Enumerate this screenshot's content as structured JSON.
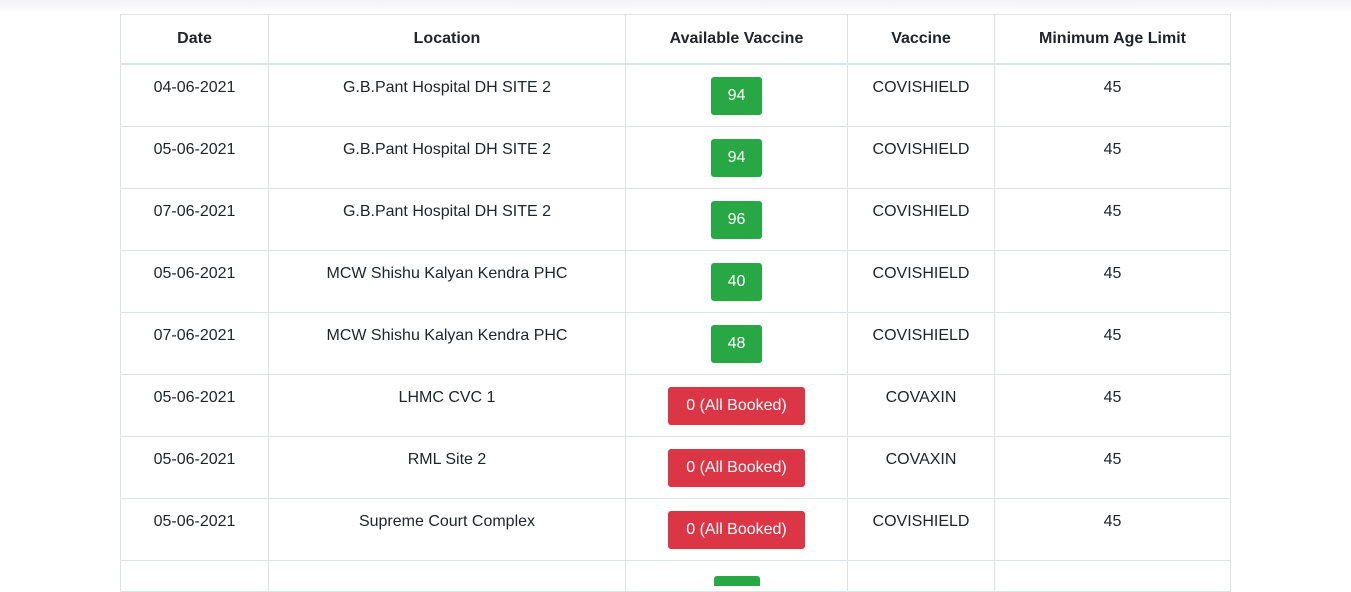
{
  "table": {
    "headers": [
      "Date",
      "Location",
      "Available Vaccine",
      "Vaccine",
      "Minimum Age Limit"
    ],
    "rows": [
      {
        "date": "04-06-2021",
        "location": "G.B.Pant Hospital DH SITE 2",
        "available": "94",
        "status": "ok",
        "vaccine": "COVISHIELD",
        "age": "45"
      },
      {
        "date": "05-06-2021",
        "location": "G.B.Pant Hospital DH SITE 2",
        "available": "94",
        "status": "ok",
        "vaccine": "COVISHIELD",
        "age": "45"
      },
      {
        "date": "07-06-2021",
        "location": "G.B.Pant Hospital DH SITE 2",
        "available": "96",
        "status": "ok",
        "vaccine": "COVISHIELD",
        "age": "45"
      },
      {
        "date": "05-06-2021",
        "location": "MCW Shishu Kalyan Kendra PHC",
        "available": "40",
        "status": "ok",
        "vaccine": "COVISHIELD",
        "age": "45"
      },
      {
        "date": "07-06-2021",
        "location": "MCW Shishu Kalyan Kendra PHC",
        "available": "48",
        "status": "ok",
        "vaccine": "COVISHIELD",
        "age": "45"
      },
      {
        "date": "05-06-2021",
        "location": "LHMC CVC 1",
        "available": "0 (All Booked)",
        "status": "booked",
        "vaccine": "COVAXIN",
        "age": "45"
      },
      {
        "date": "05-06-2021",
        "location": "RML Site 2",
        "available": "0 (All Booked)",
        "status": "booked",
        "vaccine": "COVAXIN",
        "age": "45"
      },
      {
        "date": "05-06-2021",
        "location": "Supreme Court Complex",
        "available": "0 (All Booked)",
        "status": "booked",
        "vaccine": "COVISHIELD",
        "age": "45"
      }
    ]
  },
  "colors": {
    "available_badge": "#28a745",
    "booked_badge": "#dc3545",
    "border": "#dee2e6"
  }
}
